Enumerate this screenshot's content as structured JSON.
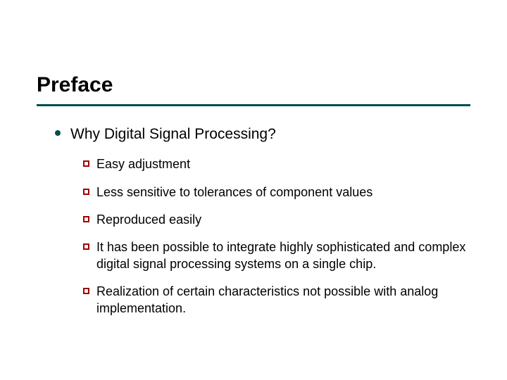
{
  "slide": {
    "title": "Preface",
    "title_color": "#000000",
    "title_fontsize": 30,
    "underline_color": "#004d4d",
    "level1_bullet_color": "#004d4d",
    "level2_bullet_color": "#a00000",
    "background_color": "#ffffff",
    "level1": {
      "text": "Why Digital Signal Processing?",
      "fontsize": 21
    },
    "level2_items": [
      {
        "text": "Easy adjustment"
      },
      {
        "text": "Less sensitive to tolerances of component values"
      },
      {
        "text": "Reproduced easily"
      },
      {
        "text": "It has been possible to integrate highly sophisticated and complex digital signal processing systems on a single chip."
      },
      {
        "text": "Realization of certain characteristics not possible with analog implementation."
      }
    ],
    "level2_fontsize": 18
  }
}
